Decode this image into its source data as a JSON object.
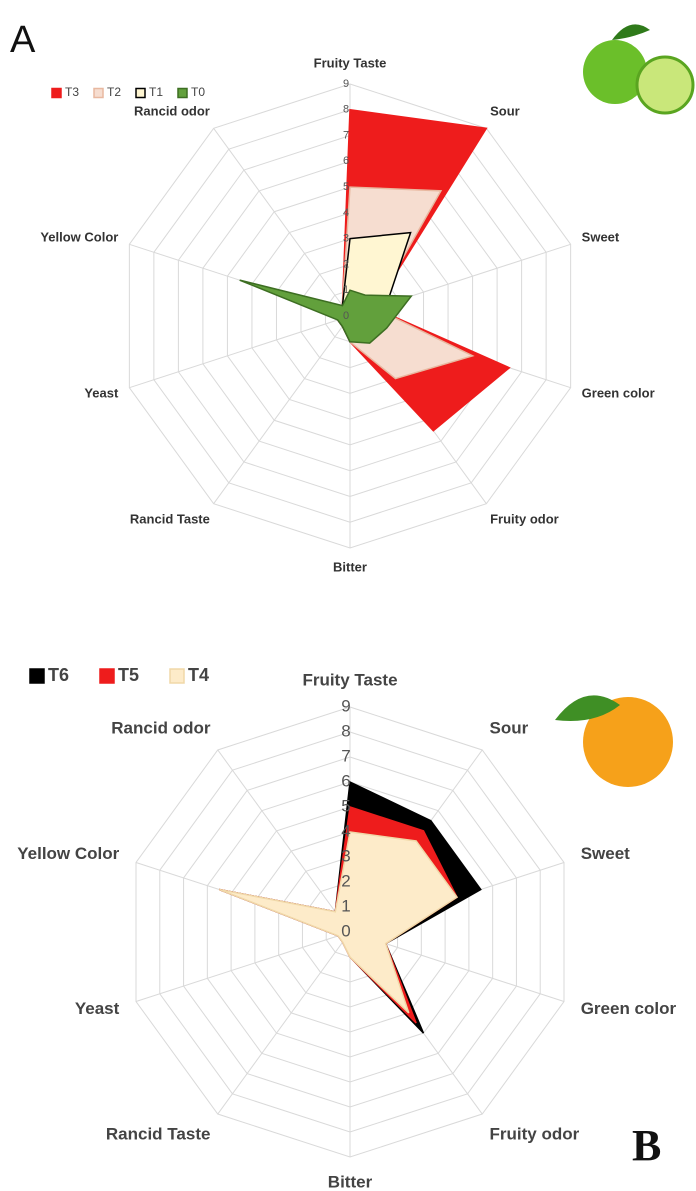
{
  "chart_data": [
    {
      "type": "radar",
      "panel": "A",
      "categories": [
        "Fruity Taste",
        "Sour",
        "Sweet",
        "Green color",
        "Fruity odor",
        "Bitter",
        "Rancid Taste",
        "Yeast",
        "Yellow Color",
        "Rancid odor"
      ],
      "series": [
        {
          "name": "T3",
          "color": "#ee1c1c",
          "stroke": "#ee1c1c",
          "values": [
            8,
            9,
            1,
            6.5,
            5.5,
            1,
            0.5,
            0.5,
            0.5,
            0.5
          ]
        },
        {
          "name": "T2",
          "color": "#f6ddd0",
          "stroke": "#e8b8a0",
          "values": [
            5,
            6,
            1,
            5,
            3,
            1,
            0.5,
            0.5,
            0.5,
            0.5
          ]
        },
        {
          "name": "T1",
          "color": "#fff6d2",
          "stroke": "#000000",
          "values": [
            3,
            4,
            1.5,
            1,
            1,
            1,
            0.5,
            0.5,
            0.5,
            0.5
          ]
        },
        {
          "name": "T0",
          "color": "#62a03c",
          "stroke": "#3d6e22",
          "values": [
            1,
            1,
            2.5,
            1.5,
            1.3,
            1,
            0.5,
            0.5,
            4.5,
            0.5
          ]
        }
      ],
      "rlim": [
        0,
        9
      ],
      "rticks": [
        0,
        1,
        2,
        3,
        4,
        5,
        6,
        7,
        8,
        9
      ],
      "grid": true
    },
    {
      "type": "radar",
      "panel": "B",
      "categories": [
        "Fruity Taste",
        "Sour",
        "Sweet",
        "Green color",
        "Fruity odor",
        "Bitter",
        "Rancid Taste",
        "Yeast",
        "Yellow Color",
        "Rancid odor"
      ],
      "series": [
        {
          "name": "T6",
          "color": "#000000",
          "stroke": "#000000",
          "values": [
            6,
            5.5,
            5.5,
            1.5,
            5,
            1,
            0.5,
            0.5,
            5.5,
            1
          ]
        },
        {
          "name": "T5",
          "color": "#ee1c1c",
          "stroke": "#ee1c1c",
          "values": [
            5,
            5,
            4.5,
            1.5,
            4.5,
            1,
            0.5,
            0.5,
            5.5,
            1
          ]
        },
        {
          "name": "T4",
          "color": "#fdebc9",
          "stroke": "#f0d8a8",
          "values": [
            4,
            4.5,
            4.5,
            1.5,
            4,
            1,
            0.5,
            0.5,
            5.5,
            1
          ]
        }
      ],
      "rlim": [
        0,
        9
      ],
      "rticks": [
        0,
        1,
        2,
        3,
        4,
        5,
        6,
        7,
        8,
        9
      ],
      "grid": true
    }
  ]
}
